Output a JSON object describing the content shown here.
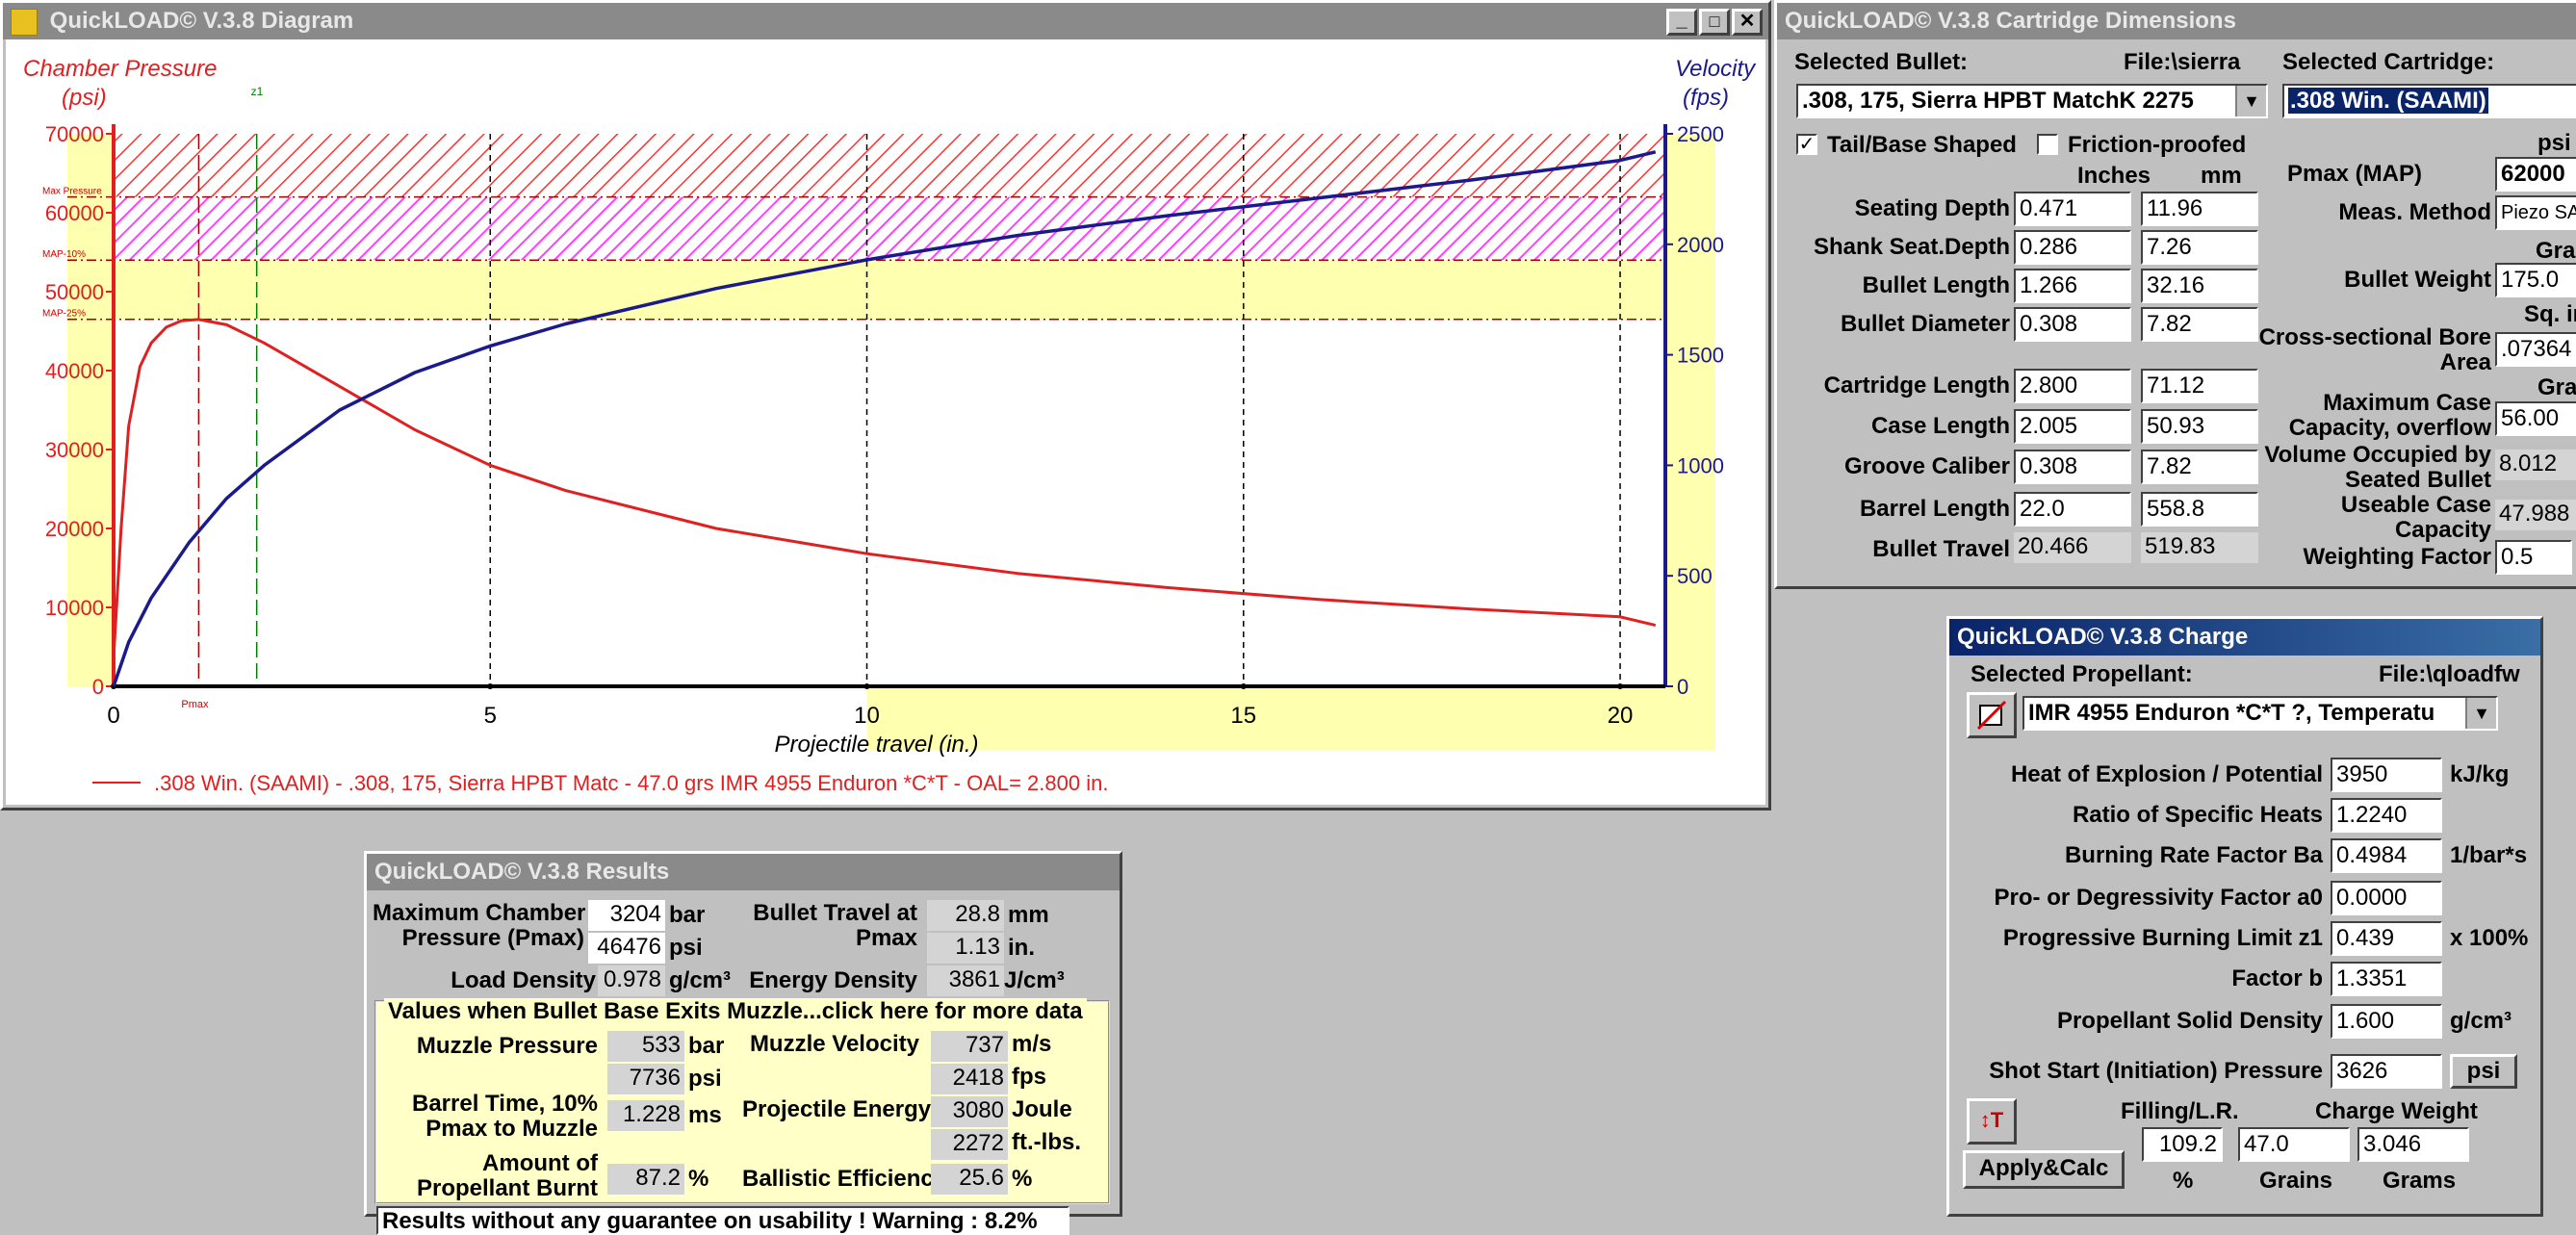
{
  "diagram": {
    "title": "QuickLOAD© V.3.8 Diagram",
    "y_left_label": "Chamber Pressure",
    "y_left_unit": "(psi)",
    "y_right_label": "Velocity",
    "y_right_unit": "(fps)",
    "x_label": "Projectile travel (in.)",
    "z1_marker": "z1",
    "pmax_marker": "Pmax",
    "band_labels": [
      "Max Pressure",
      "MAP-10%",
      "MAP-25%"
    ],
    "left_ticks": [
      "70000",
      "60000",
      "50000",
      "40000",
      "30000",
      "20000",
      "10000",
      "0"
    ],
    "right_ticks": [
      "2500",
      "2000",
      "1500",
      "1000",
      "500",
      "0"
    ],
    "x_ticks": [
      "0",
      "5",
      "10",
      "15",
      "20"
    ],
    "legend": ".308 Win. (SAAMI) - .308, 175, Sierra HPBT Matc - 47.0 grs IMR 4955 Enduron *C*T - OAL= 2.800 in.",
    "colors": {
      "pressure": "#e02020",
      "velocity": "#1a1a8c",
      "band_red": "#ff3030",
      "band_magenta": "#ff40ff",
      "band_yellow": "#ffffb0"
    }
  },
  "chart_data": {
    "type": "line",
    "title": "",
    "xlabel": "Projectile travel (in.)",
    "ylabel": "Chamber Pressure (psi)",
    "ylabel_right": "Velocity (fps)",
    "xlim": [
      0,
      21
    ],
    "ylim": [
      0,
      70000
    ],
    "ylim_right": [
      0,
      2500
    ],
    "grid": true,
    "legend_position": "bottom",
    "series": [
      {
        "name": ".308 Win. (SAAMI) - .308, 175, Sierra HPBT Matc - 47.0 grs IMR 4955 Enduron *C*T - OAL= 2.800 in.",
        "axis": "left",
        "x": [
          0,
          0.1,
          0.2,
          0.35,
          0.5,
          0.7,
          0.9,
          1.13,
          1.5,
          2,
          3,
          4,
          5,
          6,
          8,
          10,
          12,
          14,
          16,
          18,
          20,
          20.47
        ],
        "y": [
          3626,
          20000,
          33000,
          40500,
          43500,
          45500,
          46300,
          46476,
          45800,
          43500,
          38000,
          32500,
          28000,
          24800,
          20000,
          16800,
          14300,
          12500,
          11000,
          9800,
          8800,
          7736
        ]
      },
      {
        "name": "Velocity",
        "axis": "right",
        "x": [
          0,
          0.2,
          0.5,
          1,
          1.5,
          2,
          3,
          4,
          5,
          6,
          8,
          10,
          12,
          14,
          16,
          18,
          20,
          20.47
        ],
        "y": [
          0,
          200,
          400,
          650,
          850,
          1000,
          1250,
          1420,
          1540,
          1640,
          1800,
          1930,
          2040,
          2130,
          2210,
          2290,
          2380,
          2418
        ]
      }
    ]
  },
  "cartridge": {
    "title": "QuickLOAD© V.3.8 Cartridge Dimensions",
    "selected_bullet_label": "Selected Bullet:",
    "file_label": "File:\\sierra",
    "selected_cartridge_label": "Selected Cartridge:",
    "bullet_value": ".308, 175, Sierra HPBT MatchK 2275",
    "cartridge_value": ".308 Win. (SAAMI)",
    "tail_label": "Tail/Base Shaped",
    "tail_checked": "✓",
    "friction_label": "Friction-proofed",
    "col_inches": "Inches",
    "col_mm": "mm",
    "col_psi": "psi",
    "rows": [
      {
        "label": "Seating Depth",
        "in": "0.471",
        "mm": "11.96"
      },
      {
        "label": "Shank Seat.Depth",
        "in": "0.286",
        "mm": "7.26"
      },
      {
        "label": "Bullet Length",
        "in": "1.266",
        "mm": "32.16"
      },
      {
        "label": "Bullet Diameter",
        "in": "0.308",
        "mm": "7.82"
      },
      {
        "label": "Cartridge Length",
        "in": "2.800",
        "mm": "71.12"
      },
      {
        "label": "Case Length",
        "in": "2.005",
        "mm": "50.93"
      },
      {
        "label": "Groove Caliber",
        "in": "0.308",
        "mm": "7.82"
      },
      {
        "label": "Barrel Length",
        "in": "22.0",
        "mm": "558.8"
      },
      {
        "label": "Bullet Travel",
        "in": "20.466",
        "mm": "519.83"
      }
    ],
    "pmax_label": "Pmax (MAP)",
    "pmax_value": "62000",
    "meas_label": "Meas. Method",
    "meas_value": "Piezo SA",
    "grain_unit": "Grain",
    "bw_label": "Bullet Weight",
    "bw_value": "175.0",
    "sqinch_unit": "Sq. inch",
    "bore_label1": "Cross-sectional Bore",
    "bore_label2": "Area",
    "bore_value": ".07364",
    "grainsh_unit": "Grains H",
    "maxcap_label1": "Maximum Case",
    "maxcap_label2": "Capacity, overflow",
    "maxcap_value": "56.00",
    "volocc_label1": "Volume Occupied by",
    "volocc_label2": "Seated Bullet",
    "volocc_value": "8.012",
    "useable_label1": "Useable Case",
    "useable_label2": "Capacity",
    "useable_value": "47.988",
    "wf_label": "Weighting Factor",
    "wf_value": "0.5"
  },
  "charge": {
    "title": "QuickLOAD© V.3.8 Charge",
    "sel_prop_label": "Selected Propellant:",
    "file_label": "File:\\qloadfw",
    "propellant_value": "IMR 4955 Enduron *C*T ?, Temperatu",
    "rows": [
      {
        "label": "Heat of Explosion / Potential",
        "value": "3950",
        "unit": "kJ/kg"
      },
      {
        "label": "Ratio of Specific Heats",
        "value": "1.2240",
        "unit": ""
      },
      {
        "label": "Burning Rate Factor  Ba",
        "value": "0.4984",
        "unit": "1/bar*s"
      },
      {
        "label": "Pro- or Degressivity Factor  a0",
        "value": "0.0000",
        "unit": ""
      },
      {
        "label": "Progressive Burning Limit z1",
        "value": "0.439",
        "unit": "x 100%"
      },
      {
        "label": "Factor  b",
        "value": "1.3351",
        "unit": ""
      },
      {
        "label": "Propellant Solid Density",
        "value": "1.600",
        "unit": "g/cm³"
      },
      {
        "label": "Shot Start (Initiation) Pressure",
        "value": "3626",
        "unit": ""
      }
    ],
    "psi_button": "psi",
    "filling_label": "Filling/L.R.",
    "filling_value": "109.2",
    "filling_unit": "%",
    "cw_label": "Charge Weight",
    "cw_grains": "47.0",
    "cw_grains_unit": "Grains",
    "cw_grams": "3.046",
    "cw_grams_unit": "Grams",
    "apply_button": "Apply&Calc",
    "thermo_glyph": "↕T"
  },
  "results": {
    "title": "QuickLOAD© V.3.8 Results",
    "mcp_label1": "Maximum Chamber",
    "mcp_label2": "Pressure (Pmax)",
    "mcp_bar": "3204",
    "bar_unit": "bar",
    "mcp_psi": "46476",
    "psi_unit": "psi",
    "bt_label1": "Bullet Travel at",
    "bt_label2": "Pmax",
    "bt_mm": "28.8",
    "mm_unit": "mm",
    "bt_in": "1.13",
    "in_unit": "in.",
    "ld_label": "Load Density",
    "ld_value": "0.978",
    "ld_unit": "g/cm³",
    "ed_label": "Energy Density",
    "ed_value": "3861",
    "ed_unit": "J/cm³",
    "muzzle_header": "Values when Bullet Base Exits Muzzle...click here for more data",
    "mp_label": "Muzzle Pressure",
    "mp_bar": "533",
    "mp_psi": "7736",
    "mv_label": "Muzzle Velocity",
    "mv_ms": "737",
    "ms_unit": "m/s",
    "mv_fps": "2418",
    "fps_unit": "fps",
    "btime_label1": "Barrel Time, 10%",
    "btime_label2": "Pmax to Muzzle",
    "btime_value": "1.228",
    "ms2_unit": "ms",
    "pe_label": "Projectile Energy",
    "pe_joule": "3080",
    "joule_unit": "Joule",
    "pe_ftlbs": "2272",
    "ftlbs_unit": "ft.-lbs.",
    "burnt_label1": "Amount of",
    "burnt_label2": "Propellant Burnt",
    "burnt_value": "87.2",
    "pct_unit": "%",
    "be_label": "Ballistic Efficiency",
    "be_value": "25.6",
    "footer": "Results without any guarantee on usability !  Warning : 8.2%"
  }
}
